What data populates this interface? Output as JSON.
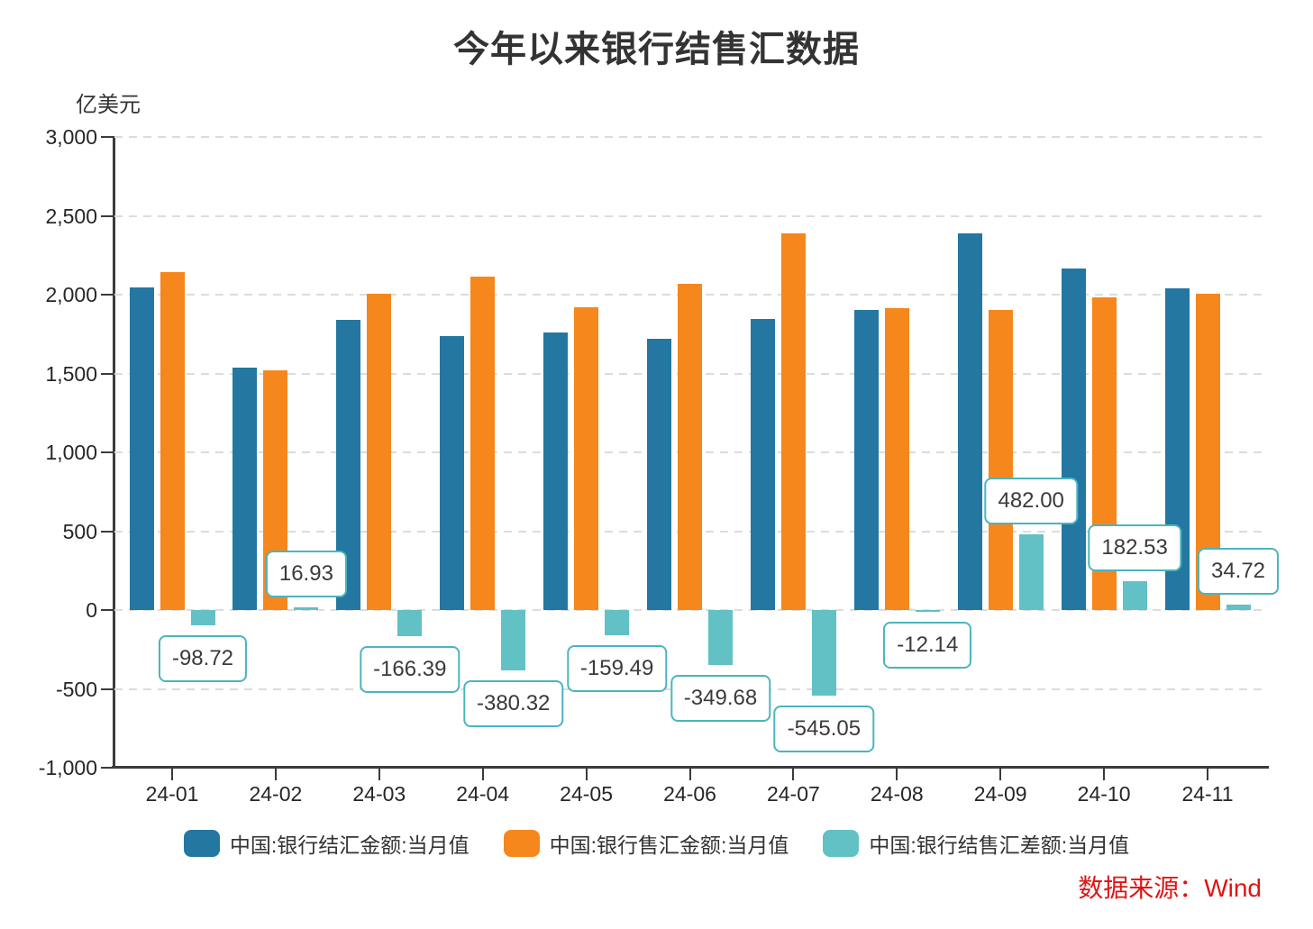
{
  "title": "今年以来银行结售汇数据",
  "source": "数据来源：Wind",
  "colors": {
    "settlement_blue": "#2377a1",
    "sales_orange": "#f6871c",
    "balance_teal": "#61c1c4",
    "callout_border": "#4ab5be",
    "grid": "#dcdcdc",
    "axis": "#3b3b3b",
    "text": "#2b2b2b",
    "source_red": "#e21414"
  },
  "chart_data": {
    "type": "bar",
    "title": "今年以来银行结售汇数据",
    "unit_label": "亿美元",
    "categories": [
      "24-01",
      "24-02",
      "24-03",
      "24-04",
      "24-05",
      "24-06",
      "24-07",
      "24-08",
      "24-09",
      "24-10",
      "24-11"
    ],
    "series": [
      {
        "name": "中国:银行结汇金额:当月值",
        "color_key": "settlement_blue",
        "values": [
          2043.88,
          1538.88,
          1838.64,
          1735.01,
          1761.17,
          1717.54,
          1845.57,
          1903.73,
          2386.27,
          2163.01,
          2040.84
        ]
      },
      {
        "name": "中国:银行售汇金额:当月值",
        "color_key": "sales_orange",
        "values": [
          2142.6,
          1521.95,
          2005.03,
          2115.33,
          1920.66,
          2067.22,
          2390.62,
          1915.87,
          1904.27,
          1980.48,
          2006.12
        ]
      },
      {
        "name": "中国:银行结售汇差额:当月值",
        "color_key": "balance_teal",
        "values": [
          -98.72,
          16.93,
          -166.39,
          -380.32,
          -159.49,
          -349.68,
          -545.05,
          -12.14,
          482.0,
          182.53,
          34.72
        ],
        "data_labels": [
          "-98.72",
          "16.93",
          "-166.39",
          "-380.32",
          "-159.49",
          "-349.68",
          "-545.05",
          "-12.14",
          "482.00",
          "182.53",
          "34.72"
        ]
      }
    ],
    "ylim": [
      -1000,
      3000
    ],
    "ytick_interval": 500,
    "ytick_labels": [
      "3,000",
      "2,500",
      "2,000",
      "1,500",
      "1,000",
      "500",
      "0",
      "-500",
      "-1,000"
    ],
    "grid": true,
    "legend_position": "bottom"
  }
}
